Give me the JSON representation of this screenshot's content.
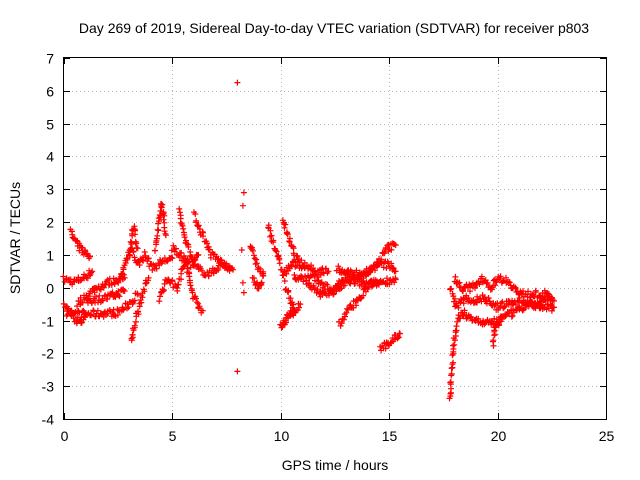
{
  "chart_data": {
    "type": "scatter",
    "title": "Day 269 of 2019, Sidereal Day-to-day VTEC variation (SDTVAR) for receiver p803",
    "xlabel": "GPS time / hours",
    "ylabel": "SDTVAR / TECUs",
    "xlim": [
      0,
      25
    ],
    "ylim": [
      -4,
      7
    ],
    "xticks": [
      0,
      5,
      10,
      15,
      20,
      25
    ],
    "yticks": [
      -4,
      -3,
      -2,
      -1,
      0,
      1,
      2,
      3,
      4,
      5,
      6,
      7
    ],
    "grid": true,
    "marker": "+",
    "color": "#ff0000",
    "series": [
      {
        "name": "SDTVAR",
        "segments": [
          [
            [
              0.0,
              0.25
            ],
            [
              0.5,
              0.18
            ],
            [
              1.0,
              0.35
            ],
            [
              1.3,
              0.5
            ]
          ],
          [
            [
              0.0,
              -0.5
            ],
            [
              0.4,
              -0.85
            ],
            [
              0.7,
              -1.1
            ],
            [
              1.0,
              -0.8
            ]
          ],
          [
            [
              0.1,
              -0.8
            ],
            [
              1.5,
              -0.8
            ],
            [
              2.5,
              -0.75
            ],
            [
              3.0,
              -0.5
            ],
            [
              3.4,
              -0.2
            ]
          ],
          [
            [
              0.3,
              1.7
            ],
            [
              0.6,
              1.3
            ],
            [
              0.9,
              1.1
            ],
            [
              1.2,
              0.95
            ]
          ],
          [
            [
              0.6,
              -0.5
            ],
            [
              1.4,
              -0.05
            ],
            [
              2.0,
              0.15
            ],
            [
              2.8,
              0.3
            ]
          ],
          [
            [
              1.0,
              -0.4
            ],
            [
              2.0,
              -0.3
            ],
            [
              2.8,
              -0.1
            ]
          ],
          [
            [
              2.6,
              0.3
            ],
            [
              3.1,
              1.3
            ],
            [
              3.4,
              0.7
            ],
            [
              3.7,
              1.0
            ],
            [
              4.1,
              0.6
            ],
            [
              4.5,
              0.8
            ],
            [
              5.0,
              0.9
            ]
          ],
          [
            [
              3.1,
              -1.7
            ],
            [
              3.3,
              -1.0
            ],
            [
              3.6,
              -0.2
            ],
            [
              3.9,
              0.3
            ]
          ],
          [
            [
              3.0,
              0.9
            ],
            [
              3.2,
              1.9
            ],
            [
              3.4,
              1.2
            ]
          ],
          [
            [
              4.2,
              1.1
            ],
            [
              4.5,
              2.6
            ],
            [
              4.7,
              1.6
            ]
          ],
          [
            [
              4.4,
              -0.3
            ],
            [
              4.8,
              0.3
            ],
            [
              5.2,
              0.0
            ],
            [
              5.6,
              0.8
            ],
            [
              6.0,
              -0.3
            ],
            [
              6.4,
              -0.7
            ]
          ],
          [
            [
              5.3,
              2.3
            ],
            [
              5.6,
              1.5
            ],
            [
              5.9,
              0.9
            ],
            [
              6.2,
              1.0
            ]
          ],
          [
            [
              6.0,
              2.2
            ],
            [
              6.4,
              1.6
            ],
            [
              6.8,
              1.0
            ],
            [
              7.2,
              0.8
            ],
            [
              7.6,
              0.6
            ]
          ],
          [
            [
              5.0,
              1.2
            ],
            [
              5.5,
              0.9
            ],
            [
              6.1,
              0.6
            ],
            [
              6.7,
              0.4
            ],
            [
              7.2,
              0.7
            ],
            [
              7.8,
              0.55
            ]
          ],
          [
            [
              8.6,
              1.3
            ],
            [
              8.9,
              0.7
            ],
            [
              9.2,
              0.4
            ],
            [
              9.0,
              -0.1
            ],
            [
              8.7,
              0.3
            ]
          ],
          [
            [
              9.4,
              1.9
            ],
            [
              9.8,
              1.1
            ],
            [
              10.1,
              0.4
            ],
            [
              10.5,
              0.7
            ],
            [
              11.0,
              0.7
            ],
            [
              11.6,
              0.5
            ],
            [
              12.2,
              0.5
            ]
          ],
          [
            [
              10.1,
              2.1
            ],
            [
              10.4,
              1.4
            ],
            [
              10.7,
              0.9
            ],
            [
              11.1,
              0.6
            ]
          ],
          [
            [
              10.2,
              0.1
            ],
            [
              10.6,
              -0.6
            ],
            [
              10.0,
              -1.2
            ],
            [
              10.9,
              -0.5
            ]
          ],
          [
            [
              10.6,
              0.3
            ],
            [
              11.5,
              0.3
            ],
            [
              12.4,
              -0.1
            ],
            [
              13.2,
              0.2
            ],
            [
              14.0,
              0.1
            ],
            [
              14.8,
              0.2
            ],
            [
              15.3,
              0.25
            ]
          ],
          [
            [
              11.2,
              0.1
            ],
            [
              11.8,
              -0.2
            ],
            [
              12.5,
              -0.1
            ],
            [
              13.0,
              0.4
            ],
            [
              13.6,
              0.3
            ],
            [
              14.3,
              0.6
            ],
            [
              14.9,
              1.2
            ],
            [
              15.3,
              1.3
            ]
          ],
          [
            [
              12.7,
              -1.1
            ],
            [
              13.2,
              -0.6
            ],
            [
              13.7,
              -0.3
            ],
            [
              14.1,
              0.15
            ],
            [
              14.6,
              0.2
            ]
          ],
          [
            [
              12.6,
              0.6
            ],
            [
              13.3,
              0.4
            ],
            [
              14.0,
              0.5
            ],
            [
              14.5,
              0.7
            ],
            [
              15.0,
              0.7
            ],
            [
              15.3,
              0.5
            ]
          ],
          [
            [
              14.6,
              -1.85
            ],
            [
              14.9,
              -1.75
            ],
            [
              15.2,
              -1.55
            ],
            [
              15.5,
              -1.4
            ]
          ],
          [
            [
              17.8,
              -3.4
            ],
            [
              17.9,
              -2.4
            ],
            [
              18.0,
              -1.6
            ],
            [
              18.2,
              -0.9
            ],
            [
              18.5,
              -0.8
            ],
            [
              19.0,
              -1.0
            ],
            [
              19.5,
              -1.1
            ],
            [
              20.0,
              -1.0
            ],
            [
              20.6,
              -0.8
            ],
            [
              21.2,
              -0.6
            ],
            [
              21.8,
              -0.5
            ],
            [
              22.5,
              -0.3
            ]
          ],
          [
            [
              17.8,
              0.0
            ],
            [
              18.1,
              -0.6
            ],
            [
              18.5,
              -0.3
            ],
            [
              18.9,
              -0.4
            ],
            [
              19.4,
              -0.3
            ],
            [
              19.9,
              -0.6
            ],
            [
              20.4,
              -0.5
            ],
            [
              21.0,
              -0.4
            ],
            [
              21.6,
              -0.5
            ],
            [
              22.2,
              -0.6
            ],
            [
              22.6,
              -0.6
            ]
          ],
          [
            [
              18.0,
              0.3
            ],
            [
              18.3,
              0.0
            ],
            [
              18.8,
              0.0
            ],
            [
              19.3,
              0.3
            ],
            [
              19.7,
              0.0
            ],
            [
              20.0,
              0.3
            ],
            [
              20.5,
              0.2
            ],
            [
              21.0,
              -0.2
            ],
            [
              21.6,
              -0.2
            ],
            [
              22.2,
              -0.2
            ],
            [
              22.6,
              -0.4
            ]
          ],
          [
            [
              19.8,
              -1.7
            ],
            [
              19.9,
              -1.2
            ],
            [
              20.2,
              -0.9
            ]
          ]
        ],
        "outliers": [
          [
            8.0,
            6.25
          ],
          [
            8.0,
            -2.55
          ],
          [
            8.3,
            2.9
          ],
          [
            8.25,
            2.5
          ],
          [
            8.2,
            1.15
          ],
          [
            8.3,
            -0.15
          ],
          [
            8.25,
            0.15
          ]
        ]
      }
    ]
  }
}
